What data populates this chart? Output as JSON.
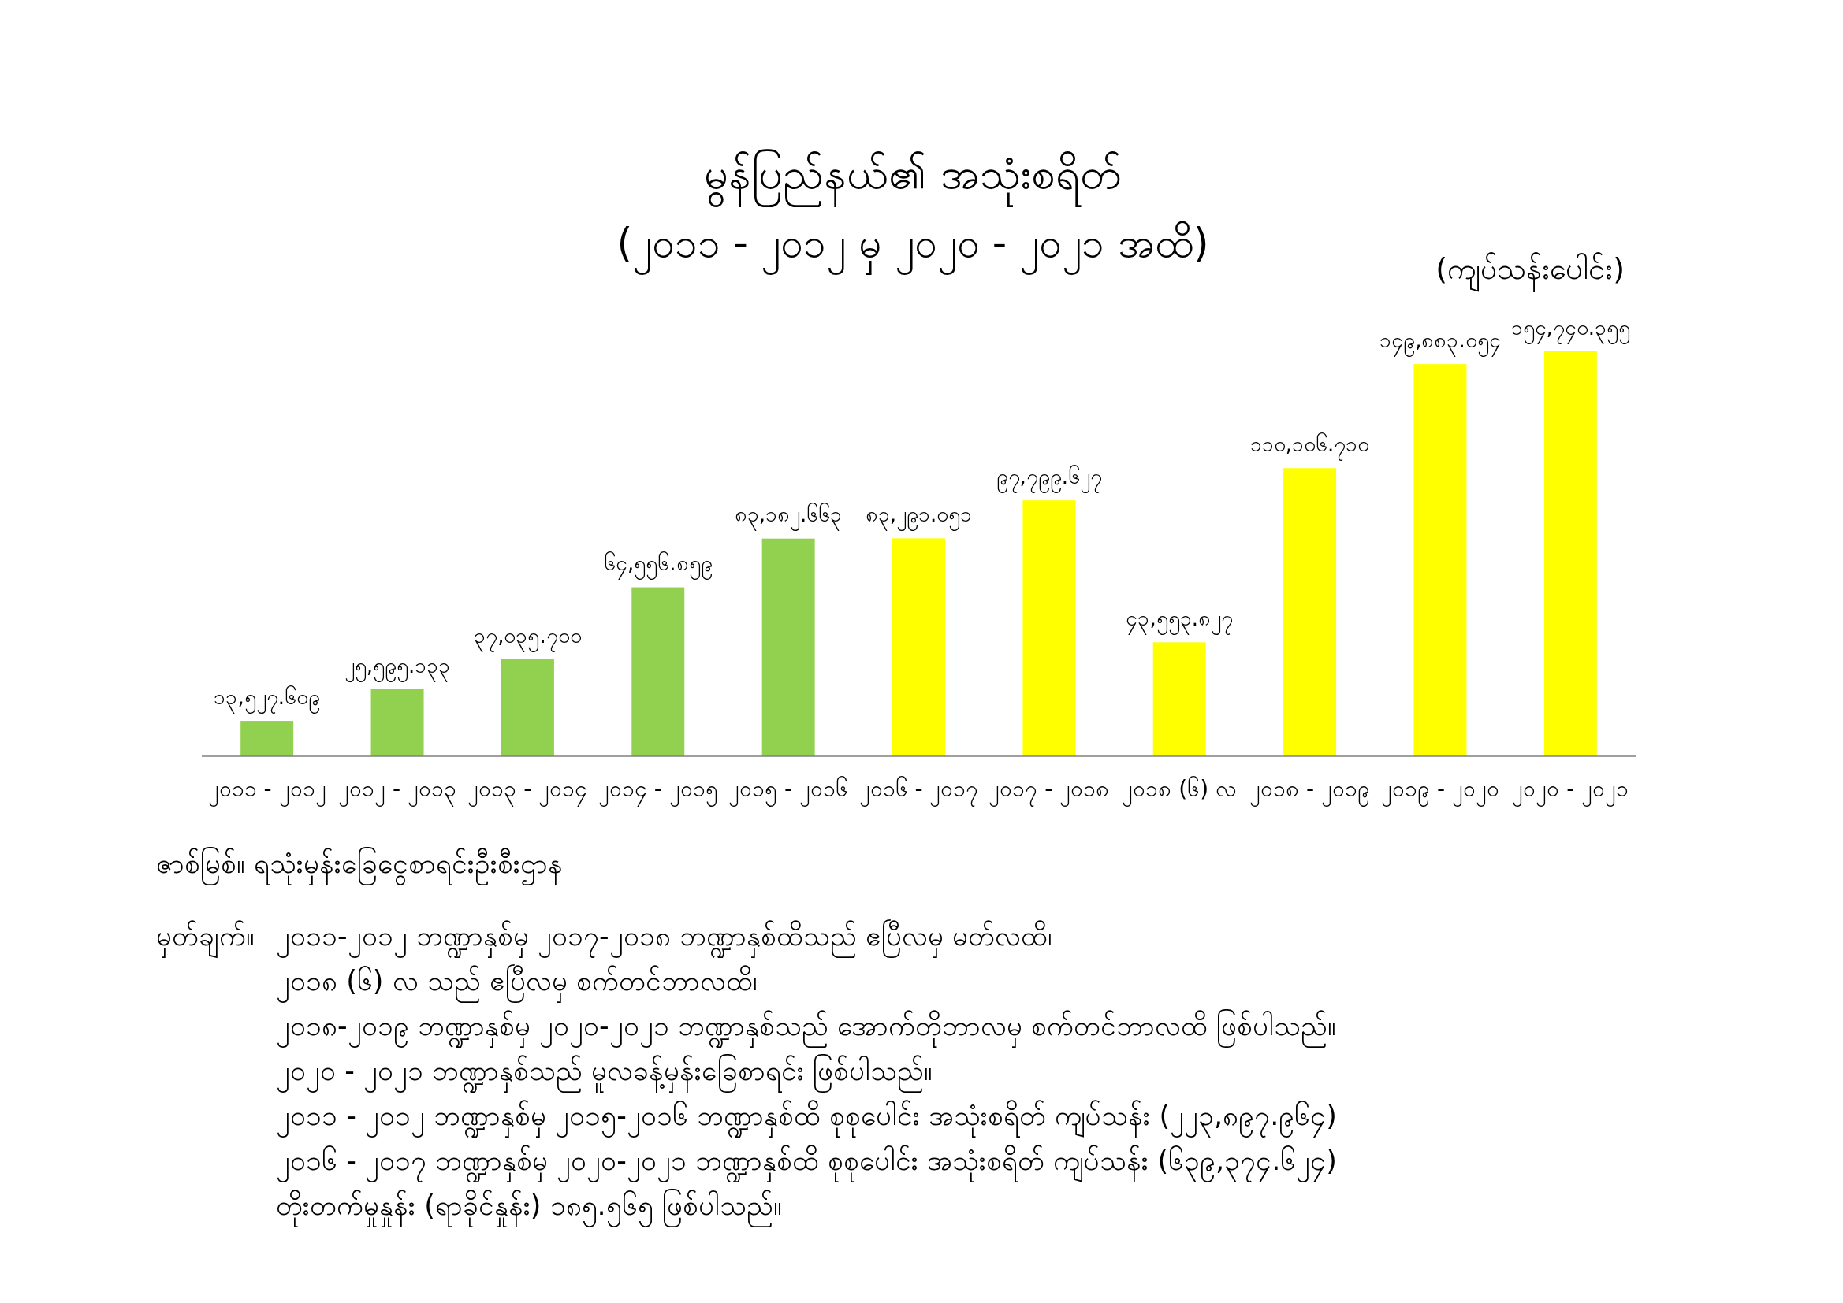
{
  "chart_data": {
    "type": "bar",
    "title": "မွန်ပြည်နယ်၏ အသုံးစရိတ်",
    "subtitle": "(၂၀၁၁ - ၂၀၁၂ မှ ၂၀၂၀ - ၂၀၂၁ အထိ)",
    "ylabel": "(ကျပ်သန်းပေါင်း)",
    "categories": [
      "၂၀၁၁ - ၂၀၁၂",
      "၂၀၁၂ - ၂၀၁၃",
      "၂၀၁၃ - ၂၀၁၄",
      "၂၀၁၄ - ၂၀၁၅",
      "၂၀၁၅ - ၂၀၁၆",
      "၂၀၁၆ - ၂၀၁၇",
      "၂၀၁၇ - ၂၀၁၈",
      "၂၀၁၈ (၆) လ",
      "၂၀၁၈ - ၂၀၁၉",
      "၂၀၁၉ - ၂၀၂၀",
      "၂၀၂၀ - ၂၀၂၁"
    ],
    "values": [
      13527.609,
      25595.133,
      37035.7,
      64556.859,
      83182.663,
      83291.051,
      97799.627,
      43553.827,
      110106.71,
      149883.054,
      154740.355
    ],
    "value_labels": [
      "၁၃,၅၂၇.၆၀၉",
      "၂၅,၅၉၅.၁၃၃",
      "၃၇,၀၃၅.၇၀၀",
      "၆၄,၅၅၆.၈၅၉",
      "၈၃,၁၈၂.၆၆၃",
      "၈၃,၂၉၁.၀၅၁",
      "၉၇,၇၉၉.၆၂၇",
      "၄၃,၅၅၃.၈၂၇",
      "၁၁၀,၁၀၆.၇၁၀",
      "၁၄၉,၈၈၃.၀၅၄",
      "၁၅၄,၇၄၀.၃၅၅"
    ],
    "colors": [
      "#92d050",
      "#92d050",
      "#92d050",
      "#92d050",
      "#92d050",
      "#ffff00",
      "#ffff00",
      "#ffff00",
      "#ffff00",
      "#ffff00",
      "#ffff00"
    ],
    "annotations": [
      "ဇာစ်မြစ်။ ရသုံးမှန်းခြေငွေစာရင်းဦးစီးဌာန",
      "မှတ်ချက်။",
      "၂၀၁၁-၂၀၁၂ ဘဏ္ဍာနှစ်မှ ၂၀၁၇-၂၀၁၈ ဘဏ္ဍာနှစ်ထိသည် ဧပြီလမှ မတ်လထိ၊",
      "၂၀၁၈ (၆) လ သည် ဧပြီလမှ စက်တင်ဘာလထိ၊",
      "၂၀၁၈-၂၀၁၉ ဘဏ္ဍာနှစ်မှ ၂၀၂၀-၂၀၂၁ ဘဏ္ဍာနှစ်သည် အောက်တိုဘာလမှ စက်တင်ဘာလထိ ဖြစ်ပါသည်။",
      "၂၀၂၀ - ၂၀၂၁ ဘဏ္ဍာနှစ်သည် မူလခန့်မှန်းခြေစာရင်း ဖြစ်ပါသည်။",
      "၂၀၁၁ - ၂၀၁၂ ဘဏ္ဍာနှစ်မှ ၂၀၁၅-၂၀၁၆ ဘဏ္ဍာနှစ်ထိ စုစုပေါင်း အသုံးစရိတ် ကျပ်သန်း (၂၂၃,၈၉၇.၉၆၄)",
      "၂၀၁၆ - ၂၀၁၇ ဘဏ္ဍာနှစ်မှ ၂၀၂၀-၂၀၂၁ ဘဏ္ဍာနှစ်ထိ စုစုပေါင်း အသုံးစရိတ် ကျပ်သန်း (၆၃၉,၃၇၄.၆၂၄)",
      "တိုးတက်မှုနှုန်း (ရာခိုင်နှုန်း) ၁၈၅.၅၆၅ ဖြစ်ပါသည်။"
    ]
  }
}
